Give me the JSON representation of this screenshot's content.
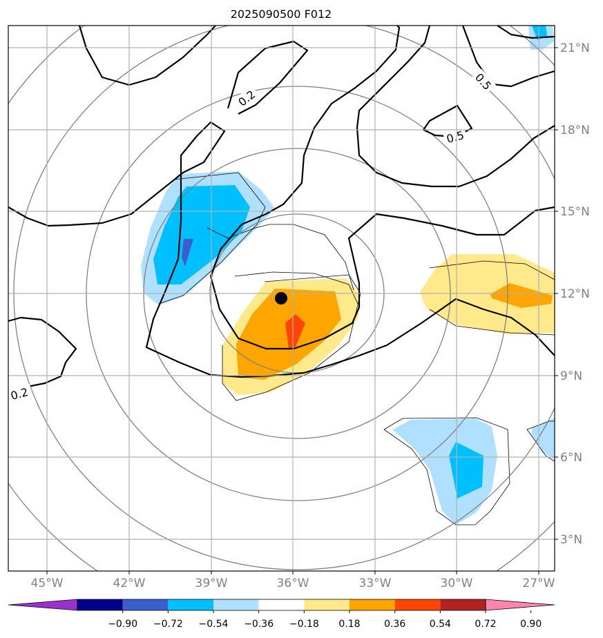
{
  "title": "2025090500 F012",
  "map": {
    "lat_labels": [
      "21°N",
      "18°N",
      "15°N",
      "12°N",
      "9°N",
      "6°N",
      "3°N"
    ],
    "lon_labels": [
      "45°W",
      "42°W",
      "39°W",
      "36°W",
      "33°W",
      "30°W",
      "27°W"
    ],
    "contour_labels": [
      "0.2",
      "0.5",
      "0.5",
      "0.2"
    ],
    "storm_marker": "storm-center",
    "colors": {
      "contour_line": "#000000",
      "range_ring": "#808080",
      "gridline": "#b0b0b0"
    }
  },
  "colorbar": {
    "ticks": [
      "−0.90",
      "−0.72",
      "−0.54",
      "−0.36",
      "−0.18",
      "0.18",
      "0.36",
      "0.54",
      "0.72",
      "0.90"
    ],
    "bins": [
      "#9932cc",
      "#00008b",
      "#3a5fcd",
      "#00bfff",
      "#b0e0ff",
      "#ffffff",
      "#ffe98a",
      "#ffa500",
      "#ff4500",
      "#b22222",
      "#ff85b0"
    ]
  }
}
